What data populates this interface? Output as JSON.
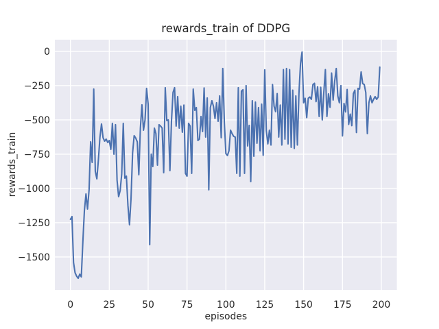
{
  "figure": {
    "background": "#ffffff",
    "axes_background": "#eaeaf2",
    "grid_color": "#ffffff",
    "text_color": "#262626"
  },
  "chart_data": {
    "type": "line",
    "title": "rewards_train of DDPG",
    "xlabel": "episodes",
    "ylabel": "rewards_train",
    "grid": true,
    "legend": null,
    "xlim": [
      -10,
      210
    ],
    "ylim": [
      -1740,
      85
    ],
    "x_ticks": [
      0,
      25,
      50,
      75,
      100,
      125,
      150,
      175,
      200
    ],
    "y_ticks": [
      0,
      -250,
      -500,
      -750,
      -1000,
      -1250,
      -1500
    ],
    "series": [
      {
        "name": "rewards_train",
        "color": "#4c72b0",
        "x_start": 0,
        "x_step": 1,
        "values": [
          -1225,
          -1205,
          -1540,
          -1615,
          -1640,
          -1655,
          -1625,
          -1645,
          -1390,
          -1160,
          -1040,
          -1150,
          -1010,
          -660,
          -810,
          -275,
          -875,
          -930,
          -790,
          -625,
          -530,
          -630,
          -655,
          -640,
          -665,
          -650,
          -715,
          -525,
          -750,
          -535,
          -940,
          -1060,
          -1015,
          -895,
          -525,
          -925,
          -910,
          -1125,
          -1265,
          -1070,
          -740,
          -615,
          -632,
          -660,
          -900,
          -560,
          -390,
          -575,
          -500,
          -270,
          -385,
          -1410,
          -750,
          -840,
          -560,
          -600,
          -830,
          -535,
          -545,
          -560,
          -885,
          -265,
          -505,
          -500,
          -870,
          -510,
          -300,
          -265,
          -545,
          -330,
          -560,
          -400,
          -590,
          -392,
          -890,
          -910,
          -525,
          -545,
          -890,
          -275,
          -430,
          -410,
          -650,
          -640,
          -475,
          -585,
          -267,
          -625,
          -340,
          -1010,
          -410,
          -360,
          -400,
          -490,
          -375,
          -510,
          -325,
          -630,
          -125,
          -510,
          -745,
          -760,
          -725,
          -575,
          -600,
          -620,
          -625,
          -890,
          -265,
          -910,
          -290,
          -280,
          -890,
          -250,
          -690,
          -540,
          -950,
          -360,
          -765,
          -370,
          -670,
          -410,
          -725,
          -385,
          -758,
          -135,
          -578,
          -675,
          -575,
          -683,
          -242,
          -400,
          -440,
          -308,
          -625,
          -392,
          -683,
          -133,
          -640,
          -125,
          -675,
          -133,
          -700,
          -283,
          -708,
          -325,
          -683,
          -308,
          -90,
          -5,
          -375,
          -342,
          -483,
          -342,
          -333,
          -350,
          -242,
          -233,
          -367,
          -258,
          -475,
          -262,
          -500,
          -300,
          -133,
          -475,
          -310,
          -408,
          -158,
          -355,
          -217,
          -125,
          -325,
          -375,
          -250,
          -617,
          -380,
          -442,
          -278,
          -533,
          -458,
          -542,
          -308,
          -283,
          -592,
          -270,
          -275,
          -150,
          -235,
          -242,
          -300,
          -600,
          -375,
          -325,
          -375,
          -350,
          -330,
          -350,
          -333,
          -115
        ]
      }
    ]
  }
}
